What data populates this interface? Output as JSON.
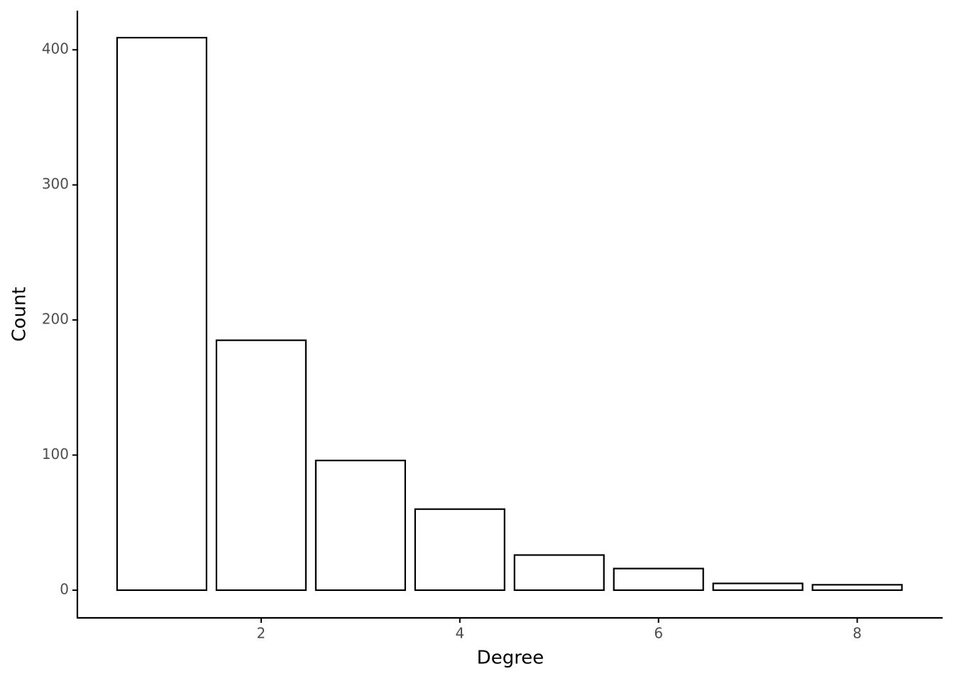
{
  "chart_data": {
    "type": "bar",
    "x": [
      1,
      2,
      3,
      4,
      5,
      6,
      7,
      8
    ],
    "values": [
      409,
      185,
      96,
      60,
      26,
      16,
      5,
      4
    ],
    "x_label": "Degree",
    "y_label": "Count",
    "xlim": [
      0.15,
      8.86
    ],
    "ylim": [
      -20.5,
      429
    ],
    "xticks": [
      2,
      4,
      6,
      8
    ],
    "yticks": [
      0,
      100,
      200,
      300,
      400
    ],
    "color": "#ffffff",
    "edgecolor": "#000000",
    "grid": false
  }
}
